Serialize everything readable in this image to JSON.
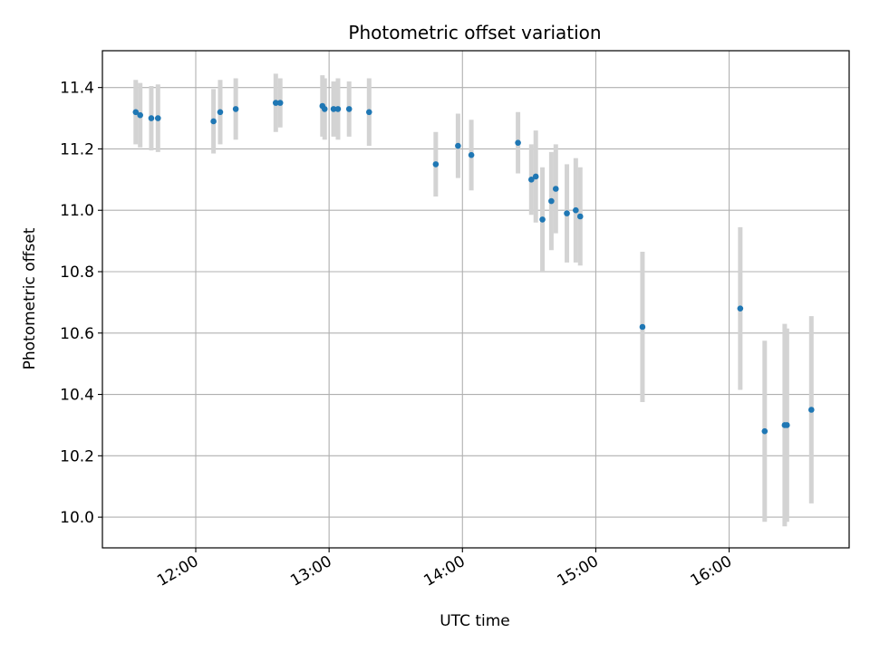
{
  "chart_data": {
    "type": "scatter",
    "title": "Photometric offset variation",
    "xlabel": "UTC time",
    "ylabel": "Photometric offset",
    "xlim": [
      "11:18",
      "16:54"
    ],
    "ylim": [
      9.9,
      11.52
    ],
    "x_ticks": [
      "12:00",
      "13:00",
      "14:00",
      "15:00",
      "16:00"
    ],
    "y_ticks": [
      10.0,
      10.2,
      10.4,
      10.6,
      10.8,
      11.0,
      11.2,
      11.4
    ],
    "grid": true,
    "colors": {
      "point": "#1f77b4",
      "errorbar": "#d3d3d3",
      "grid": "#b0b0b0"
    },
    "points": [
      {
        "t": "11:33",
        "y": 11.32,
        "err": 0.105
      },
      {
        "t": "11:35",
        "y": 11.31,
        "err": 0.105
      },
      {
        "t": "11:40",
        "y": 11.3,
        "err": 0.105
      },
      {
        "t": "11:43",
        "y": 11.3,
        "err": 0.11
      },
      {
        "t": "12:08",
        "y": 11.29,
        "err": 0.105
      },
      {
        "t": "12:11",
        "y": 11.32,
        "err": 0.105
      },
      {
        "t": "12:18",
        "y": 11.33,
        "err": 0.1
      },
      {
        "t": "12:36",
        "y": 11.35,
        "err": 0.095
      },
      {
        "t": "12:38",
        "y": 11.35,
        "err": 0.08
      },
      {
        "t": "12:57",
        "y": 11.34,
        "err": 0.1
      },
      {
        "t": "12:58",
        "y": 11.33,
        "err": 0.1
      },
      {
        "t": "13:02",
        "y": 11.33,
        "err": 0.09
      },
      {
        "t": "13:04",
        "y": 11.33,
        "err": 0.1
      },
      {
        "t": "13:09",
        "y": 11.33,
        "err": 0.09
      },
      {
        "t": "13:18",
        "y": 11.32,
        "err": 0.11
      },
      {
        "t": "13:48",
        "y": 11.15,
        "err": 0.105
      },
      {
        "t": "13:58",
        "y": 11.21,
        "err": 0.105
      },
      {
        "t": "14:04",
        "y": 11.18,
        "err": 0.115
      },
      {
        "t": "14:25",
        "y": 11.22,
        "err": 0.1
      },
      {
        "t": "14:31",
        "y": 11.1,
        "err": 0.115
      },
      {
        "t": "14:33",
        "y": 11.11,
        "err": 0.15
      },
      {
        "t": "14:36",
        "y": 10.97,
        "err": 0.17
      },
      {
        "t": "14:40",
        "y": 11.03,
        "err": 0.16
      },
      {
        "t": "14:42",
        "y": 11.07,
        "err": 0.145
      },
      {
        "t": "14:47",
        "y": 10.99,
        "err": 0.16
      },
      {
        "t": "14:51",
        "y": 11.0,
        "err": 0.17
      },
      {
        "t": "14:53",
        "y": 10.98,
        "err": 0.16
      },
      {
        "t": "15:21",
        "y": 10.62,
        "err": 0.245
      },
      {
        "t": "16:05",
        "y": 10.68,
        "err": 0.265
      },
      {
        "t": "16:16",
        "y": 10.28,
        "err": 0.295
      },
      {
        "t": "16:25",
        "y": 10.3,
        "err": 0.33
      },
      {
        "t": "16:26",
        "y": 10.3,
        "err": 0.315
      },
      {
        "t": "16:37",
        "y": 10.35,
        "err": 0.305
      }
    ]
  }
}
